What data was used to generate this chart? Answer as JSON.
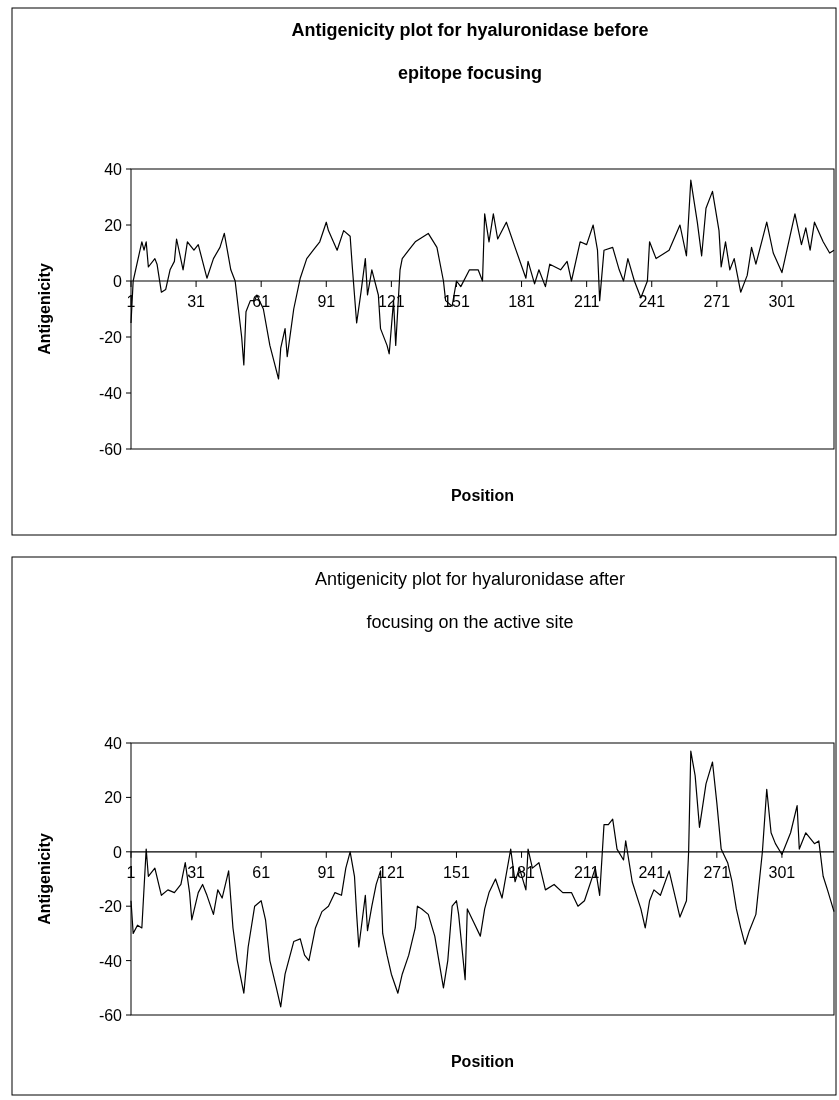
{
  "chart_data": [
    {
      "type": "line",
      "title": "Antigenicity plot for hyaluronidase before epitope focusing",
      "xlabel": "Position",
      "ylabel": "Antigenicity",
      "color": "#000000",
      "grid": false,
      "marker": "none",
      "line_style": "solid",
      "xlim": [
        1,
        325
      ],
      "xticks": [
        1,
        31,
        61,
        91,
        121,
        151,
        181,
        211,
        241,
        271,
        301
      ],
      "ylim": [
        -60,
        40
      ],
      "yticks": [
        -60,
        -40,
        -20,
        0,
        20,
        40
      ],
      "x": [
        1,
        2,
        6,
        7,
        8,
        9,
        12,
        13,
        15,
        17,
        19,
        21,
        22,
        25,
        27,
        30,
        32,
        36,
        39,
        42,
        44,
        47,
        49,
        52,
        53,
        54,
        56,
        58,
        59,
        62,
        65,
        67,
        69,
        70,
        72,
        73,
        76,
        79,
        82,
        85,
        88,
        91,
        92,
        96,
        99,
        102,
        103,
        105,
        107,
        109,
        110,
        112,
        115,
        116,
        119,
        120,
        122,
        123,
        125,
        126,
        129,
        132,
        138,
        142,
        145,
        146,
        149,
        151,
        153,
        157,
        161,
        163,
        164,
        166,
        168,
        170,
        174,
        178,
        183,
        184,
        187,
        189,
        192,
        194,
        199,
        202,
        204,
        208,
        211,
        214,
        216,
        217,
        219,
        223,
        226,
        228,
        230,
        233,
        236,
        239,
        240,
        243,
        249,
        254,
        257,
        259,
        262,
        264,
        266,
        269,
        272,
        273,
        275,
        277,
        279,
        282,
        285,
        287,
        289,
        294,
        297,
        301,
        307,
        310,
        312,
        314,
        316,
        320,
        323,
        325
      ],
      "values": [
        -15,
        0,
        14,
        11,
        14,
        5,
        8,
        6,
        -4,
        -3,
        4,
        7,
        15,
        4,
        14,
        11,
        13,
        1,
        8,
        12,
        17,
        4,
        0,
        -20,
        -30,
        -11,
        -7,
        -7,
        -5,
        -10,
        -23,
        -29,
        -35,
        -24,
        -17,
        -27,
        -10,
        1,
        8,
        11,
        14,
        21,
        18,
        11,
        18,
        16,
        5,
        -15,
        -4,
        8,
        -5,
        4,
        -5,
        -17,
        -23,
        -26,
        -7,
        -23,
        4,
        8,
        11,
        14,
        17,
        12,
        0,
        -7,
        -9,
        0,
        -2,
        4,
        4,
        0,
        24,
        14,
        24,
        15,
        21,
        12,
        1,
        7,
        -1,
        4,
        -2,
        6,
        4,
        7,
        0,
        14,
        13,
        20,
        11,
        -7,
        11,
        12,
        4,
        0,
        8,
        0,
        -6,
        0,
        14,
        8,
        11,
        20,
        9,
        36,
        21,
        9,
        26,
        32,
        18,
        5,
        14,
        4,
        8,
        -4,
        2,
        12,
        6,
        21,
        10,
        3,
        24,
        13,
        19,
        11,
        21,
        14,
        10,
        11
      ]
    },
    {
      "type": "line",
      "title": "Antigenicity plot for hyaluronidase after focusing on the active site",
      "xlabel": "Position",
      "ylabel": "Antigenicity",
      "color": "#000000",
      "grid": false,
      "marker": "none",
      "line_style": "solid",
      "xlim": [
        1,
        325
      ],
      "xticks": [
        1,
        31,
        61,
        91,
        121,
        151,
        181,
        211,
        241,
        271,
        301
      ],
      "ylim": [
        -60,
        40
      ],
      "yticks": [
        -60,
        -40,
        -20,
        0,
        20,
        40
      ],
      "x": [
        1,
        2,
        4,
        6,
        8,
        9,
        12,
        15,
        18,
        21,
        24,
        26,
        28,
        29,
        32,
        34,
        36,
        39,
        41,
        43,
        46,
        48,
        50,
        53,
        55,
        58,
        61,
        63,
        65,
        68,
        70,
        72,
        76,
        79,
        81,
        83,
        86,
        89,
        92,
        95,
        98,
        100,
        102,
        104,
        105,
        106,
        109,
        110,
        112,
        114,
        116,
        117,
        119,
        121,
        124,
        126,
        129,
        132,
        133,
        135,
        138,
        141,
        145,
        147,
        149,
        151,
        152,
        155,
        156,
        159,
        162,
        164,
        166,
        169,
        172,
        176,
        178,
        180,
        183,
        184,
        186,
        189,
        192,
        196,
        200,
        204,
        207,
        210,
        215,
        217,
        219,
        221,
        223,
        225,
        228,
        229,
        232,
        236,
        238,
        240,
        242,
        245,
        249,
        254,
        257,
        258,
        259,
        261,
        263,
        266,
        269,
        271,
        273,
        276,
        278,
        280,
        282,
        284,
        286,
        289,
        292,
        294,
        296,
        298,
        301,
        305,
        308,
        309,
        312,
        316,
        318,
        320,
        322,
        325
      ],
      "values": [
        -18,
        -30,
        -27,
        -28,
        1,
        -9,
        -6,
        -16,
        -14,
        -15,
        -12,
        -4,
        -15,
        -25,
        -15,
        -12,
        -16,
        -23,
        -14,
        -17,
        -7,
        -28,
        -40,
        -52,
        -35,
        -20,
        -18,
        -25,
        -40,
        -50,
        -57,
        -45,
        -33,
        -32,
        -38,
        -40,
        -28,
        -22,
        -20,
        -15,
        -16,
        -6,
        0,
        -9,
        -23,
        -35,
        -16,
        -29,
        -20,
        -12,
        -7,
        -30,
        -38,
        -45,
        -52,
        -45,
        -38,
        -28,
        -20,
        -21,
        -23,
        -31,
        -50,
        -40,
        -20,
        -18,
        -23,
        -47,
        -21,
        -26,
        -31,
        -21,
        -15,
        -10,
        -17,
        1,
        -11,
        -6,
        -14,
        1,
        -6,
        -4,
        -14,
        -12,
        -15,
        -15,
        -20,
        -18,
        -6,
        -16,
        10,
        10,
        12,
        1,
        -3,
        4,
        -11,
        -21,
        -28,
        -18,
        -14,
        -16,
        -7,
        -24,
        -18,
        0,
        37,
        28,
        9,
        25,
        33,
        18,
        1,
        -4,
        -11,
        -21,
        -28,
        -34,
        -29,
        -23,
        0,
        23,
        7,
        3,
        -1,
        7,
        17,
        1,
        7,
        3,
        4,
        -9,
        -14,
        -22
      ]
    }
  ]
}
